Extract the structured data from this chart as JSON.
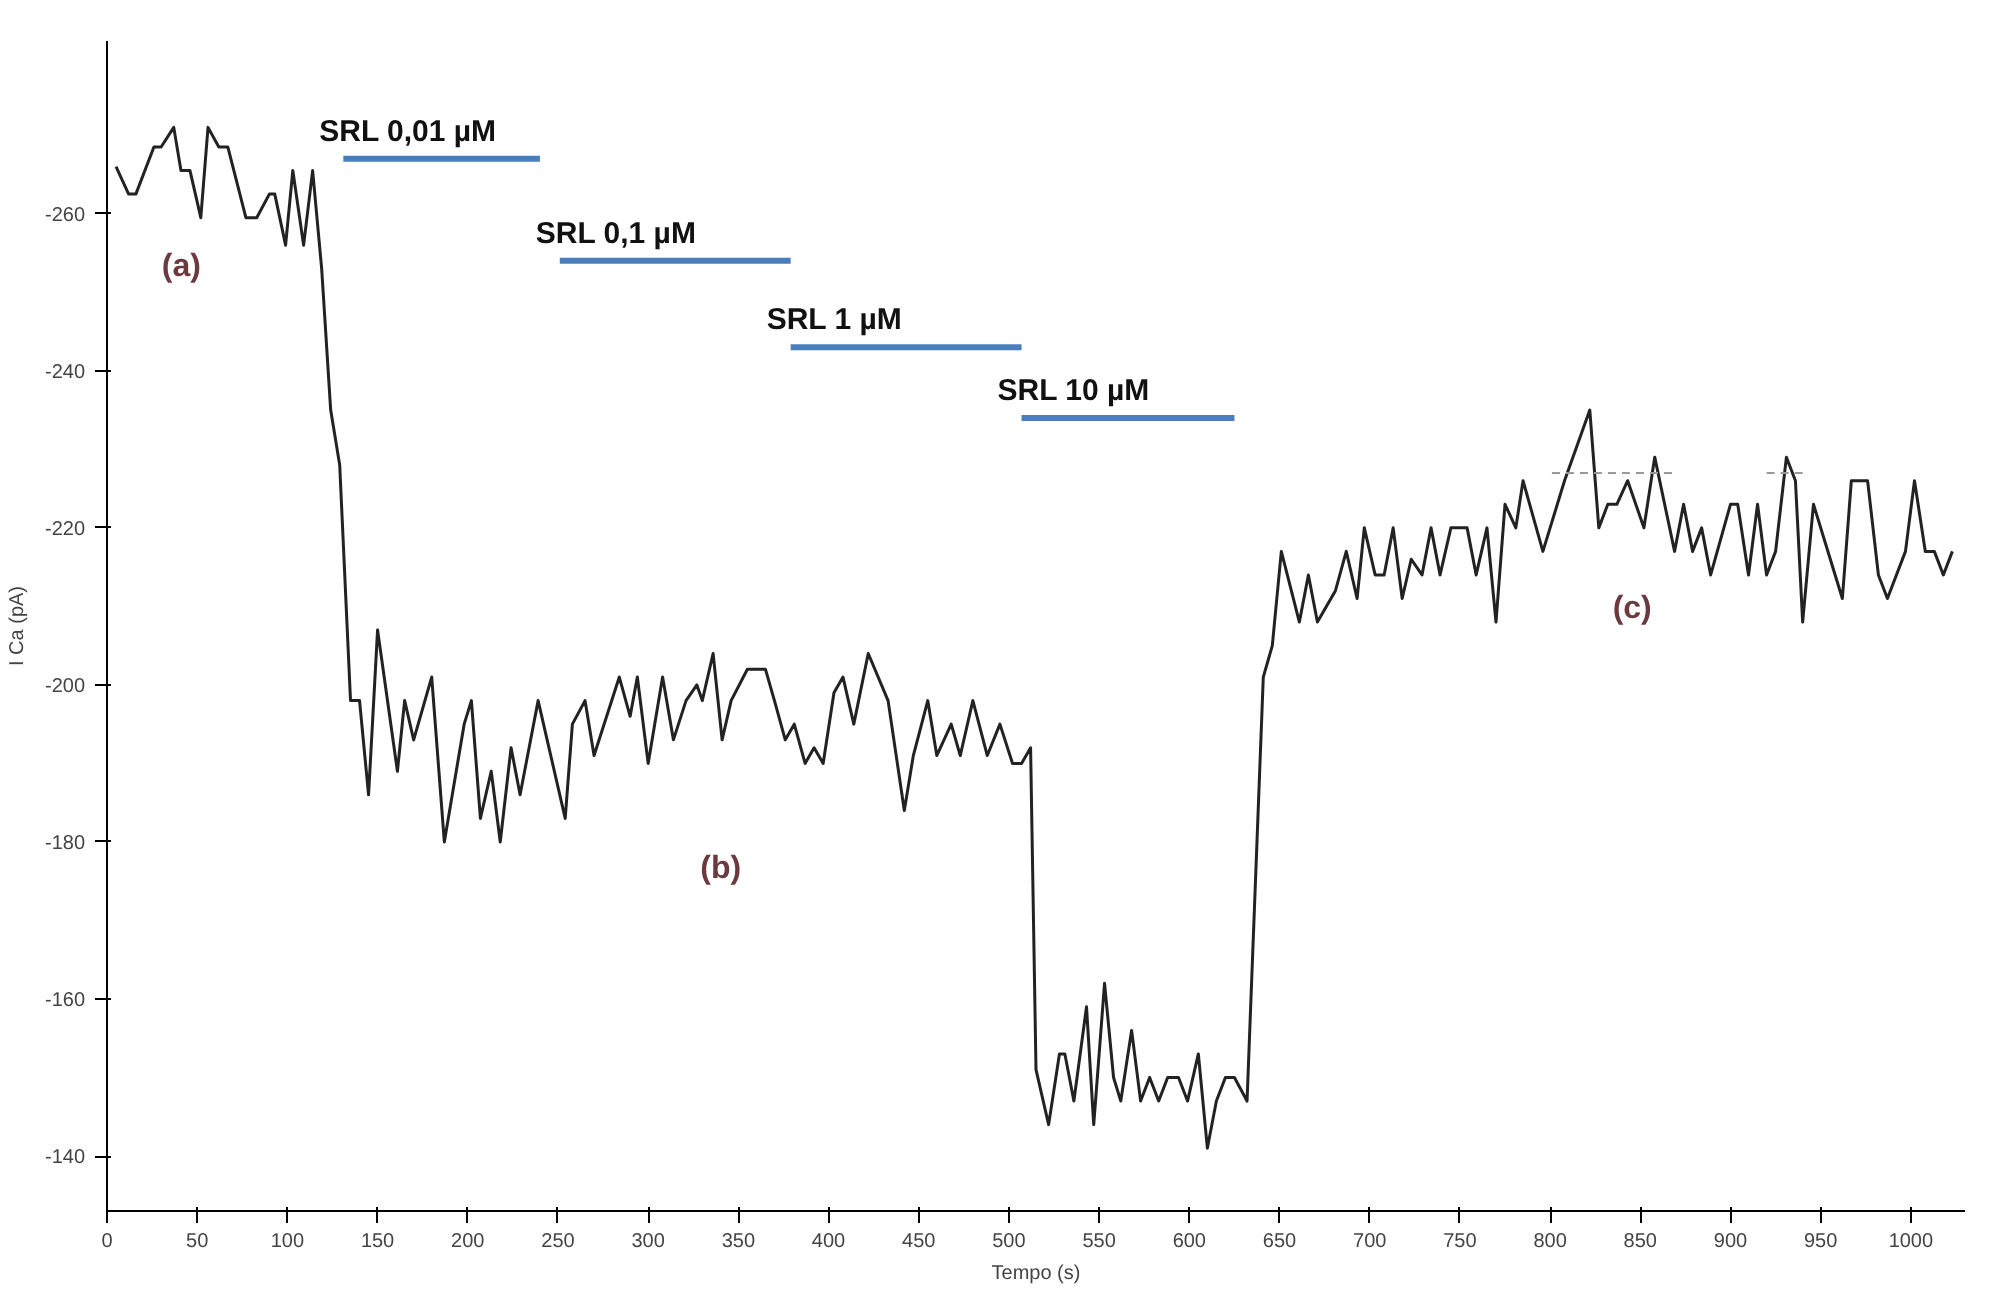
{
  "chart_data": {
    "type": "line",
    "xlabel": "Tempo (s)",
    "ylabel": "I Ca (pA)",
    "xlim": [
      0,
      1030
    ],
    "ylim": [
      -133,
      -282
    ],
    "xticks": [
      0,
      50,
      100,
      150,
      200,
      250,
      300,
      350,
      400,
      450,
      500,
      550,
      600,
      650,
      700,
      750,
      800,
      850,
      900,
      950,
      1000
    ],
    "yticks": [
      -260,
      -240,
      -220,
      -200,
      -180,
      -160,
      -140
    ],
    "grid": false,
    "marker": "none",
    "series": [
      {
        "color": "#222222",
        "line_style": "solid",
        "x": [
          5,
          12,
          16,
          26,
          30,
          37,
          41,
          46,
          52,
          56,
          62,
          67,
          77,
          83,
          90,
          93,
          99,
          103,
          109,
          114,
          119,
          124,
          129,
          135,
          140,
          145,
          150,
          161,
          165,
          170,
          180,
          187,
          198,
          202,
          207,
          213,
          218,
          224,
          229,
          239,
          254,
          258,
          265,
          270,
          284,
          290,
          294,
          300,
          308,
          314,
          321,
          327,
          330,
          336,
          341,
          346,
          355,
          365,
          370,
          376,
          381,
          387,
          392,
          397,
          403,
          408,
          414,
          422,
          433,
          442,
          447,
          455,
          460,
          468,
          473,
          480,
          488,
          495,
          502,
          507,
          512,
          515,
          522,
          528,
          531,
          536,
          543,
          547,
          553,
          558,
          562,
          568,
          573,
          578,
          583,
          588,
          594,
          599,
          605,
          610,
          615,
          620,
          625,
          632,
          641,
          646,
          651,
          661,
          666,
          671,
          681,
          687,
          693,
          697,
          703,
          708,
          713,
          718,
          723,
          729,
          734,
          739,
          745,
          754,
          759,
          765,
          770,
          775,
          781,
          785,
          796,
          808,
          822,
          827,
          832,
          837,
          843,
          852,
          858,
          869,
          874,
          879,
          884,
          889,
          900,
          904,
          910,
          915,
          920,
          925,
          931,
          936,
          940,
          946,
          962,
          967,
          976,
          982,
          987,
          997,
          1002,
          1008,
          1013,
          1018,
          1023
        ],
        "values": [
          -266,
          -262.5,
          -262.5,
          -268.5,
          -268.5,
          -271,
          -265.5,
          -265.5,
          -259.5,
          -271,
          -268.5,
          -268.5,
          -259.5,
          -259.5,
          -262.5,
          -262.5,
          -256,
          -265.5,
          -256,
          -265.5,
          -253,
          -235,
          -228,
          -198,
          -198,
          -186,
          -207,
          -189,
          -198,
          -193,
          -201,
          -180,
          -195,
          -198,
          -183,
          -189,
          -180,
          -192,
          -186,
          -198,
          -183,
          -195,
          -198,
          -191,
          -201,
          -196,
          -201,
          -190,
          -201,
          -193,
          -198,
          -200,
          -198,
          -204,
          -193,
          -198,
          -202,
          -202,
          -198,
          -193,
          -195,
          -190,
          -192,
          -190,
          -199,
          -201,
          -195,
          -204,
          -198,
          -184,
          -191,
          -198,
          -191,
          -195,
          -191,
          -198,
          -191,
          -195,
          -190,
          -190,
          -192,
          -151,
          -144,
          -153,
          -153,
          -147,
          -159,
          -144,
          -162,
          -150,
          -147,
          -156,
          -147,
          -150,
          -147,
          -150,
          -150,
          -147,
          -153,
          -141,
          -147,
          -150,
          -150,
          -147,
          -201,
          -205,
          -217,
          -208,
          -214,
          -208,
          -212,
          -217,
          -211,
          -220,
          -214,
          -214,
          -220,
          -211,
          -216,
          -214,
          -220,
          -214,
          -220,
          -220,
          -214,
          -220,
          -208,
          -223,
          -220,
          -226,
          -217,
          -226,
          -235,
          -220,
          -223,
          -223,
          -226,
          -220,
          -229,
          -217,
          -223,
          -217,
          -220,
          -214,
          -223,
          -223,
          -214,
          -223,
          -214,
          -217,
          -229,
          -226,
          -208,
          -223,
          -211,
          -226,
          -226,
          -214,
          -211,
          -217,
          -226,
          -217,
          -217,
          -214,
          -217
        ]
      },
      {
        "color": "#999999",
        "line_style": "dashed",
        "x": [
          801,
          870
        ],
        "values": [
          -227,
          -227
        ]
      },
      {
        "color": "#999999",
        "line_style": "dashed",
        "x": [
          920,
          942
        ],
        "values": [
          -227,
          -227
        ]
      },
      {
        "name": "SRL 0,01 µM",
        "color": "#4a7ebb",
        "line_style": "solid",
        "x": [
          131,
          240
        ],
        "values": [
          -267,
          -267
        ]
      },
      {
        "name": "SRL 0,1 µM",
        "color": "#4a7ebb",
        "line_style": "solid",
        "x": [
          251,
          379
        ],
        "values": [
          -254,
          -254
        ]
      },
      {
        "name": "SRL 1 µM",
        "color": "#4a7ebb",
        "line_style": "solid",
        "x": [
          379,
          507
        ],
        "values": [
          -243,
          -243
        ]
      },
      {
        "name": "SRL 10 µM",
        "color": "#4a7ebb",
        "line_style": "solid",
        "x": [
          507,
          625
        ],
        "values": [
          -234,
          -234
        ]
      }
    ],
    "annotations": [
      "(a)",
      "(b)",
      "(c)"
    ]
  }
}
